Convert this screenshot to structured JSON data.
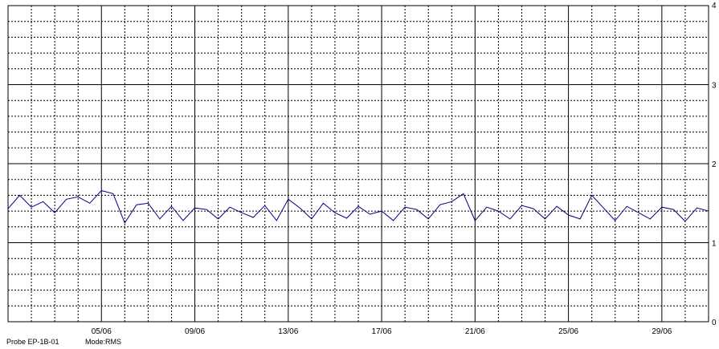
{
  "chart_data": {
    "type": "line",
    "title": "",
    "xlabel": "",
    "ylabel": "",
    "x_start": "2009-06-01",
    "x_end": "2009-07-01",
    "x_tick_labels": [
      "05/06",
      "09/06",
      "13/06",
      "17/06",
      "21/06",
      "25/06",
      "29/06"
    ],
    "x_tick_dates": [
      "2009-06-05",
      "2009-06-09",
      "2009-06-13",
      "2009-06-17",
      "2009-06-21",
      "2009-06-25",
      "2009-06-29"
    ],
    "ylim": [
      0,
      4
    ],
    "y_tick_labels": [
      "0",
      "1",
      "2",
      "3",
      "4"
    ],
    "grid": true,
    "line_color": "#000080",
    "series": [
      {
        "name": "",
        "x": [
          "2009-06-01 00:00",
          "2009-06-01 12:00",
          "2009-06-02 00:00",
          "2009-06-02 12:00",
          "2009-06-03 00:00",
          "2009-06-03 12:00",
          "2009-06-04 00:00",
          "2009-06-04 12:00",
          "2009-06-05 00:00",
          "2009-06-05 12:00",
          "2009-06-06 00:00",
          "2009-06-06 12:00",
          "2009-06-07 00:00",
          "2009-06-07 12:00",
          "2009-06-08 00:00",
          "2009-06-08 12:00",
          "2009-06-09 00:00",
          "2009-06-09 12:00",
          "2009-06-10 00:00",
          "2009-06-10 12:00",
          "2009-06-11 00:00",
          "2009-06-11 12:00",
          "2009-06-12 00:00",
          "2009-06-12 12:00",
          "2009-06-13 00:00",
          "2009-06-13 12:00",
          "2009-06-14 00:00",
          "2009-06-14 12:00",
          "2009-06-15 00:00",
          "2009-06-15 12:00",
          "2009-06-16 00:00",
          "2009-06-16 12:00",
          "2009-06-17 00:00",
          "2009-06-17 12:00",
          "2009-06-18 00:00",
          "2009-06-18 12:00",
          "2009-06-19 00:00",
          "2009-06-19 12:00",
          "2009-06-20 00:00",
          "2009-06-20 12:00",
          "2009-06-21 00:00",
          "2009-06-21 12:00",
          "2009-06-22 00:00",
          "2009-06-22 12:00",
          "2009-06-23 00:00",
          "2009-06-23 12:00",
          "2009-06-24 00:00",
          "2009-06-24 12:00",
          "2009-06-25 00:00",
          "2009-06-25 12:00",
          "2009-06-26 00:00",
          "2009-06-26 12:00",
          "2009-06-27 00:00",
          "2009-06-27 12:00",
          "2009-06-28 00:00",
          "2009-06-28 12:00",
          "2009-06-29 00:00",
          "2009-06-29 12:00",
          "2009-06-30 00:00",
          "2009-06-30 12:00",
          "2009-07-01 00:00"
        ],
        "y": [
          1.43,
          1.6,
          1.45,
          1.52,
          1.38,
          1.55,
          1.58,
          1.5,
          1.66,
          1.62,
          1.25,
          1.48,
          1.5,
          1.3,
          1.46,
          1.28,
          1.44,
          1.42,
          1.3,
          1.45,
          1.38,
          1.32,
          1.47,
          1.28,
          1.55,
          1.44,
          1.3,
          1.5,
          1.38,
          1.31,
          1.46,
          1.36,
          1.4,
          1.28,
          1.45,
          1.42,
          1.3,
          1.48,
          1.52,
          1.62,
          1.28,
          1.45,
          1.4,
          1.3,
          1.47,
          1.43,
          1.3,
          1.46,
          1.35,
          1.3,
          1.6,
          1.44,
          1.28,
          1.46,
          1.38,
          1.3,
          1.45,
          1.42,
          1.27,
          1.44,
          1.4
        ]
      }
    ]
  },
  "footer": {
    "probe": "Probe EP-1B-01",
    "mode": "Mode:RMS"
  }
}
